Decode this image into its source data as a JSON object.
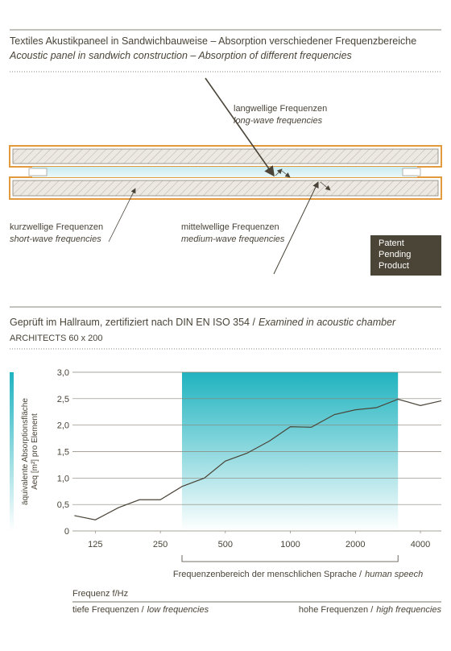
{
  "header": {
    "title": "Textiles Akustikpaneel in Sandwichbauweise – Absorption verschiedener Frequenzbereiche",
    "subtitle": "Acoustic panel in sandwich construction – Absorption of different frequencies"
  },
  "diagram": {
    "long": {
      "de": "langwellige Frequenzen",
      "en": "long-wave frequencies"
    },
    "short": {
      "de": "kurzwellige Frequenzen",
      "en": "short-wave frequencies"
    },
    "medium": {
      "de": "mittelwellige Frequenzen",
      "en": "medium-wave frequencies"
    },
    "badge": [
      "Patent",
      "Pending",
      "Product"
    ]
  },
  "chart_data": {
    "type": "line",
    "title": "Geprüft im Hallraum, zertifiziert nach DIN EN ISO 354 /",
    "title_en": "Examined in acoustic chamber",
    "subtitle": "ARCHITECTS 60 x 200",
    "y_label": [
      "äquivalente Absorptionsfläche",
      "Aeq [m²] pro Element"
    ],
    "x_label": "Frequenz f/Hz",
    "x": [
      100,
      125,
      160,
      200,
      250,
      315,
      400,
      500,
      630,
      800,
      1000,
      1250,
      1600,
      2000,
      2500,
      3150,
      4000,
      5000
    ],
    "values": [
      0.29,
      0.21,
      0.44,
      0.59,
      0.59,
      0.84,
      1.0,
      1.32,
      1.47,
      1.7,
      1.97,
      1.96,
      2.2,
      2.29,
      2.33,
      2.49,
      2.37,
      2.46
    ],
    "color": "#4a4438",
    "xlog": true,
    "xlim": [
      98,
      5000
    ],
    "xticks": [
      125,
      250,
      500,
      1000,
      2000,
      4000
    ],
    "ylim": [
      0,
      3
    ],
    "yticks": [
      0,
      {
        "value": 0.5,
        "label": "0,5"
      },
      {
        "value": 1,
        "label": "1,0"
      },
      {
        "value": 1.5,
        "label": "1,5"
      },
      {
        "value": 2,
        "label": "2,0"
      },
      {
        "value": 2.5,
        "label": "2,5"
      },
      {
        "value": 3,
        "label": "3,0"
      }
    ],
    "grid": true,
    "highlight": {
      "range": [
        315,
        3150
      ],
      "color": "#1fb3bf",
      "label": "Frequenzenbereich der menschlichen Sprache /",
      "label_en": "human speech"
    },
    "footer": {
      "low": "tiefe Frequenzen /",
      "low_en": "low frequencies",
      "high": "hohe Frequenzen /",
      "high_en": "high frequencies"
    }
  }
}
